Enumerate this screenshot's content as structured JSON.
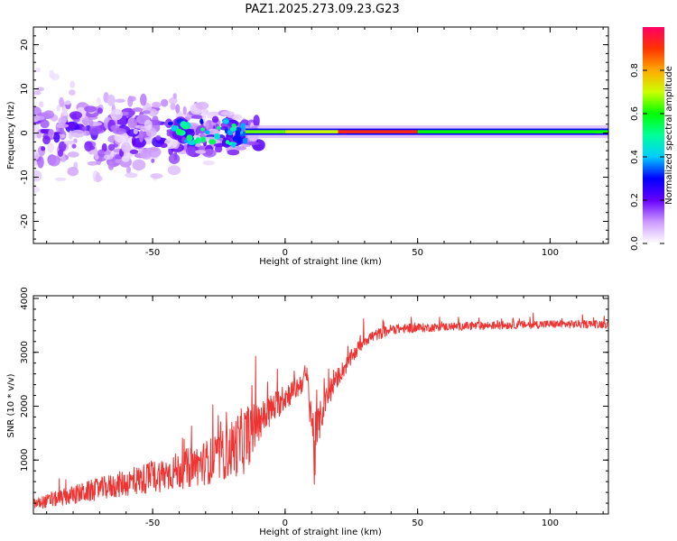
{
  "title": "PAZ1.2025.273.09.23.G23",
  "chart_data": [
    {
      "type": "heatmap",
      "xlabel": "Height of straight line (km)",
      "ylabel": "Frequency (Hz)",
      "xlim": [
        -95,
        122
      ],
      "ylim": [
        -25,
        24
      ],
      "xticks": [
        -50,
        0,
        50,
        100
      ],
      "xtick_labels": [
        "-50",
        "0",
        "50",
        "100"
      ],
      "yticks": [
        -20,
        -10,
        0,
        10,
        20
      ],
      "ytick_labels": [
        "-20",
        "-10",
        "0",
        "10",
        "20"
      ],
      "ridge": {
        "description": "narrow high-amplitude band near 0 Hz",
        "x_start": -15,
        "x_end": 122,
        "frequency": 0.3,
        "segments": [
          {
            "x0": -15,
            "x1": 0,
            "level": 0.65
          },
          {
            "x0": 0,
            "x1": 20,
            "level": 0.7
          },
          {
            "x0": 20,
            "x1": 50,
            "level": 0.92
          },
          {
            "x0": 50,
            "x1": 122,
            "level": 0.6
          }
        ]
      },
      "scatter_region": {
        "x0": -95,
        "x1": -10,
        "fmin": -15,
        "fmax": 12
      }
    },
    {
      "type": "colorbar",
      "label": "Normalized spectral amplitude",
      "range": [
        0,
        1
      ],
      "ticks": [
        0.0,
        0.2,
        0.4,
        0.6,
        0.8
      ],
      "tick_labels": [
        "0.0",
        "0.2",
        "0.4",
        "0.6",
        "0.8"
      ],
      "colors": [
        "#ffffff",
        "#cc99ff",
        "#6600ff",
        "#0000ff",
        "#00ccff",
        "#00ff99",
        "#00ff00",
        "#ccff00",
        "#ffaa00",
        "#ff3300",
        "#ff0066"
      ]
    },
    {
      "type": "line",
      "xlabel": "Height of straight line (km)",
      "ylabel": "SNR (10 * v/v)",
      "xlim": [
        -95,
        122
      ],
      "ylim": [
        0,
        4050
      ],
      "xticks": [
        -50,
        0,
        50,
        100
      ],
      "xtick_labels": [
        "-50",
        "0",
        "50",
        "100"
      ],
      "yticks": [
        1000,
        2000,
        3000,
        4000
      ],
      "ytick_labels": [
        "1000",
        "2000",
        "3000",
        "4000"
      ],
      "color": "#ee3333",
      "envelope_x": [
        -95,
        -80,
        -60,
        -40,
        -25,
        -15,
        -10,
        0,
        5,
        8,
        10,
        11,
        12,
        15,
        20,
        30,
        40,
        60,
        80,
        100,
        122
      ],
      "envelope_y": [
        150,
        300,
        500,
        700,
        900,
        1200,
        1600,
        2100,
        2300,
        2500,
        1700,
        900,
        1400,
        2000,
        2500,
        3200,
        3400,
        3450,
        3480,
        3500,
        3500
      ],
      "noise_amplitude": [
        200,
        350,
        500,
        700,
        900,
        1300,
        700,
        500,
        400,
        500,
        900,
        1500,
        800,
        500,
        350,
        250,
        180,
        150,
        150,
        150,
        150
      ]
    }
  ]
}
